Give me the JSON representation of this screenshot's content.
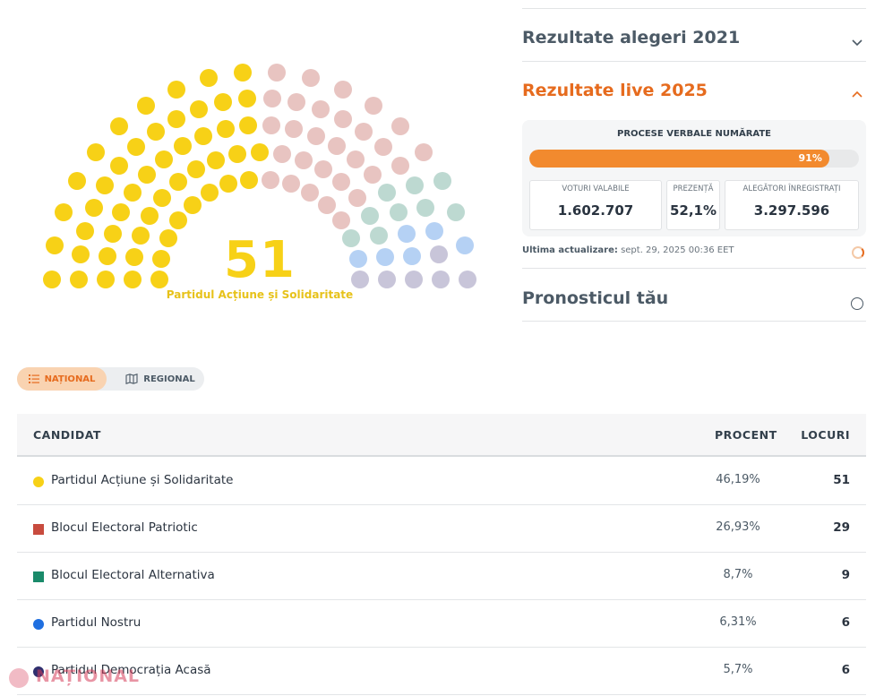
{
  "hemicycle": {
    "leading_seats": "51",
    "leading_party": "Partidul Acțiune și Solidaritate",
    "seat_groups": [
      {
        "party": "Partidul Acțiune și Solidaritate",
        "seats": 51,
        "color": "#f7d117"
      },
      {
        "party": "Blocul Electoral Patriotic",
        "seats": 29,
        "color": "#e8c4c1"
      },
      {
        "party": "Blocul Electoral Alternativa",
        "seats": 9,
        "color": "#bdd9d1"
      },
      {
        "party": "Partidul Nostru",
        "seats": 6,
        "color": "#b5d1f4"
      },
      {
        "party": "Partidul Democrația Acasă",
        "seats": 6,
        "color": "#c8c5d9"
      }
    ]
  },
  "accordion": {
    "results_2021": "Rezultate alegeri 2021",
    "live_2025": "Rezultate live 2025",
    "forecast": "Pronosticul tău"
  },
  "live": {
    "counted_label": "PROCESE VERBALE NUMĂRATE",
    "progress_percent": 91,
    "progress_text": "91%",
    "stats": [
      {
        "label": "VOTURI VALABILE",
        "value": "1.602.707"
      },
      {
        "label": "PREZENȚĂ",
        "value": "52,1%"
      },
      {
        "label": "ALEGĂTORI ÎNREGISTRAȚI",
        "value": "3.297.596"
      }
    ],
    "update_label": "Ultima actualizare:",
    "update_time": "sept. 29, 2025 00:36 EET"
  },
  "view_toggle": {
    "national": "NAȚIONAL",
    "regional": "REGIONAL"
  },
  "table": {
    "headers": {
      "candidate": "CANDIDAT",
      "percent": "PROCENT",
      "seats": "LOCURI"
    },
    "rows": [
      {
        "name": "Partidul Acțiune și Solidaritate",
        "percent": "46,19%",
        "seats": "51",
        "color": "#f7d117",
        "shape": "circle"
      },
      {
        "name": "Blocul Electoral Patriotic",
        "percent": "26,93%",
        "seats": "29",
        "color": "#c84b3e",
        "shape": "square"
      },
      {
        "name": "Blocul Electoral Alternativa",
        "percent": "8,7%",
        "seats": "9",
        "color": "#1a8a6a",
        "shape": "square"
      },
      {
        "name": "Partidul Nostru",
        "percent": "6,31%",
        "seats": "6",
        "color": "#1f6fe0",
        "shape": "circle"
      },
      {
        "name": "Partidul Democrația Acasă",
        "percent": "5,7%",
        "seats": "6",
        "color": "#2f2f6e",
        "shape": "circle"
      }
    ]
  },
  "watermark": "NAȚIONAL"
}
